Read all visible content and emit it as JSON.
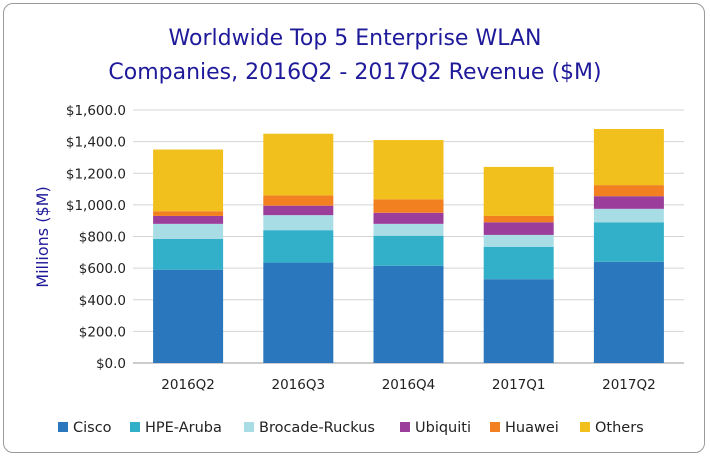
{
  "chart_data": {
    "type": "bar",
    "stacked": true,
    "title_lines": [
      "Worldwide Top 5 Enterprise WLAN",
      "Companies, 2016Q2 - 2017Q2 Revenue ($M)"
    ],
    "xlabel": "",
    "ylabel": "Millions ($M)",
    "ylim": [
      0,
      1600
    ],
    "yticks": [
      "$0.0",
      "$200.0",
      "$400.0",
      "$600.0",
      "$800.0",
      "$1,000.0",
      "$1,200.0",
      "$1,400.0",
      "$1,600.0"
    ],
    "categories": [
      "2016Q2",
      "2016Q3",
      "2016Q4",
      "2017Q1",
      "2017Q2"
    ],
    "series": [
      {
        "name": "Cisco",
        "color": "#2a77be",
        "values": [
          590,
          635,
          615,
          530,
          640
        ]
      },
      {
        "name": "HPE-Aruba",
        "color": "#33b0c9",
        "values": [
          195,
          205,
          190,
          205,
          250
        ]
      },
      {
        "name": "Brocade-Ruckus",
        "color": "#a8dde6",
        "values": [
          95,
          95,
          75,
          75,
          85
        ]
      },
      {
        "name": "Ubiquiti",
        "color": "#9b3e9b",
        "values": [
          50,
          60,
          70,
          80,
          80
        ]
      },
      {
        "name": "Huawei",
        "color": "#f28021",
        "values": [
          30,
          65,
          85,
          40,
          70
        ]
      },
      {
        "name": "Others",
        "color": "#f2c01d",
        "values": [
          390,
          390,
          375,
          310,
          355
        ]
      }
    ],
    "grid": true,
    "legend_position": "bottom"
  }
}
